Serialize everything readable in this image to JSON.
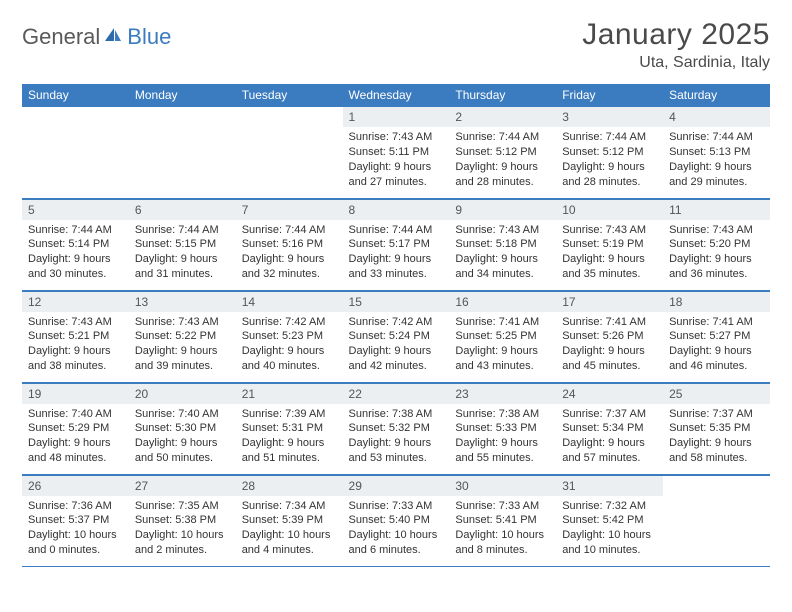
{
  "brand": {
    "name1": "General",
    "name2": "Blue",
    "text_color_1": "#5a5a5a",
    "text_color_2": "#3b7bbf"
  },
  "header": {
    "title": "January 2025",
    "location": "Uta, Sardinia, Italy"
  },
  "colors": {
    "header_bg": "#3b7bbf",
    "header_fg": "#ffffff",
    "daynum_bg": "#eceff1",
    "border": "#3b7bbf",
    "body_text": "#333333"
  },
  "days_of_week": [
    "Sunday",
    "Monday",
    "Tuesday",
    "Wednesday",
    "Thursday",
    "Friday",
    "Saturday"
  ],
  "weeks": [
    [
      null,
      null,
      null,
      {
        "n": "1",
        "sr": "7:43 AM",
        "ss": "5:11 PM",
        "dl": "9 hours and 27 minutes."
      },
      {
        "n": "2",
        "sr": "7:44 AM",
        "ss": "5:12 PM",
        "dl": "9 hours and 28 minutes."
      },
      {
        "n": "3",
        "sr": "7:44 AM",
        "ss": "5:12 PM",
        "dl": "9 hours and 28 minutes."
      },
      {
        "n": "4",
        "sr": "7:44 AM",
        "ss": "5:13 PM",
        "dl": "9 hours and 29 minutes."
      }
    ],
    [
      {
        "n": "5",
        "sr": "7:44 AM",
        "ss": "5:14 PM",
        "dl": "9 hours and 30 minutes."
      },
      {
        "n": "6",
        "sr": "7:44 AM",
        "ss": "5:15 PM",
        "dl": "9 hours and 31 minutes."
      },
      {
        "n": "7",
        "sr": "7:44 AM",
        "ss": "5:16 PM",
        "dl": "9 hours and 32 minutes."
      },
      {
        "n": "8",
        "sr": "7:44 AM",
        "ss": "5:17 PM",
        "dl": "9 hours and 33 minutes."
      },
      {
        "n": "9",
        "sr": "7:43 AM",
        "ss": "5:18 PM",
        "dl": "9 hours and 34 minutes."
      },
      {
        "n": "10",
        "sr": "7:43 AM",
        "ss": "5:19 PM",
        "dl": "9 hours and 35 minutes."
      },
      {
        "n": "11",
        "sr": "7:43 AM",
        "ss": "5:20 PM",
        "dl": "9 hours and 36 minutes."
      }
    ],
    [
      {
        "n": "12",
        "sr": "7:43 AM",
        "ss": "5:21 PM",
        "dl": "9 hours and 38 minutes."
      },
      {
        "n": "13",
        "sr": "7:43 AM",
        "ss": "5:22 PM",
        "dl": "9 hours and 39 minutes."
      },
      {
        "n": "14",
        "sr": "7:42 AM",
        "ss": "5:23 PM",
        "dl": "9 hours and 40 minutes."
      },
      {
        "n": "15",
        "sr": "7:42 AM",
        "ss": "5:24 PM",
        "dl": "9 hours and 42 minutes."
      },
      {
        "n": "16",
        "sr": "7:41 AM",
        "ss": "5:25 PM",
        "dl": "9 hours and 43 minutes."
      },
      {
        "n": "17",
        "sr": "7:41 AM",
        "ss": "5:26 PM",
        "dl": "9 hours and 45 minutes."
      },
      {
        "n": "18",
        "sr": "7:41 AM",
        "ss": "5:27 PM",
        "dl": "9 hours and 46 minutes."
      }
    ],
    [
      {
        "n": "19",
        "sr": "7:40 AM",
        "ss": "5:29 PM",
        "dl": "9 hours and 48 minutes."
      },
      {
        "n": "20",
        "sr": "7:40 AM",
        "ss": "5:30 PM",
        "dl": "9 hours and 50 minutes."
      },
      {
        "n": "21",
        "sr": "7:39 AM",
        "ss": "5:31 PM",
        "dl": "9 hours and 51 minutes."
      },
      {
        "n": "22",
        "sr": "7:38 AM",
        "ss": "5:32 PM",
        "dl": "9 hours and 53 minutes."
      },
      {
        "n": "23",
        "sr": "7:38 AM",
        "ss": "5:33 PM",
        "dl": "9 hours and 55 minutes."
      },
      {
        "n": "24",
        "sr": "7:37 AM",
        "ss": "5:34 PM",
        "dl": "9 hours and 57 minutes."
      },
      {
        "n": "25",
        "sr": "7:37 AM",
        "ss": "5:35 PM",
        "dl": "9 hours and 58 minutes."
      }
    ],
    [
      {
        "n": "26",
        "sr": "7:36 AM",
        "ss": "5:37 PM",
        "dl": "10 hours and 0 minutes."
      },
      {
        "n": "27",
        "sr": "7:35 AM",
        "ss": "5:38 PM",
        "dl": "10 hours and 2 minutes."
      },
      {
        "n": "28",
        "sr": "7:34 AM",
        "ss": "5:39 PM",
        "dl": "10 hours and 4 minutes."
      },
      {
        "n": "29",
        "sr": "7:33 AM",
        "ss": "5:40 PM",
        "dl": "10 hours and 6 minutes."
      },
      {
        "n": "30",
        "sr": "7:33 AM",
        "ss": "5:41 PM",
        "dl": "10 hours and 8 minutes."
      },
      {
        "n": "31",
        "sr": "7:32 AM",
        "ss": "5:42 PM",
        "dl": "10 hours and 10 minutes."
      },
      null
    ]
  ],
  "labels": {
    "sunrise": "Sunrise:",
    "sunset": "Sunset:",
    "daylight": "Daylight:"
  }
}
